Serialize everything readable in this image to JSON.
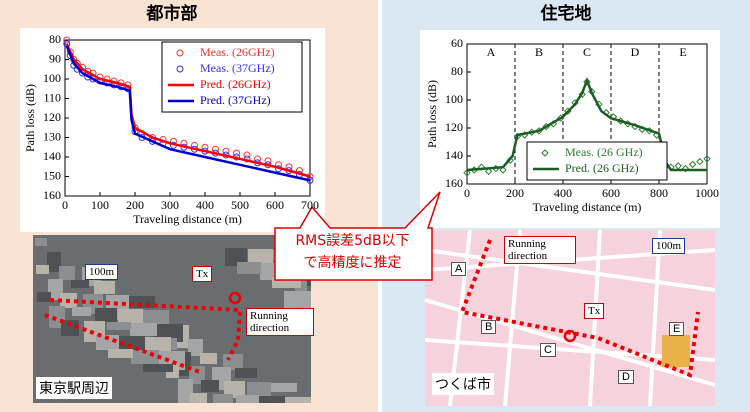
{
  "chart_data": [
    {
      "type": "line",
      "title": "都市部",
      "xlabel": "Traveling distance (m)",
      "ylabel": "Path loss (dB)",
      "xlim": [
        0,
        700
      ],
      "xticks": [
        0,
        100,
        200,
        300,
        400,
        500,
        600,
        700
      ],
      "ylim": [
        80,
        160
      ],
      "yticks": [
        80,
        90,
        100,
        110,
        120,
        130,
        140,
        150,
        160
      ],
      "y_inverted": true,
      "legend": "upper right",
      "series": [
        {
          "name": "Meas. (26GHz)",
          "color": "#ff3030",
          "mode": "markers",
          "marker": "circle",
          "x": [
            5,
            15,
            25,
            35,
            50,
            65,
            80,
            100,
            120,
            140,
            160,
            180,
            200,
            220,
            250,
            280,
            310,
            340,
            370,
            400,
            430,
            460,
            490,
            520,
            550,
            580,
            610,
            640,
            670,
            700
          ],
          "values": [
            80,
            86,
            90,
            92,
            94,
            96,
            97,
            99,
            100,
            101,
            102,
            103,
            125,
            128,
            130,
            131,
            132,
            133,
            134,
            135,
            136,
            137,
            138,
            139,
            141,
            142,
            144,
            145,
            147,
            150
          ]
        },
        {
          "name": "Meas. (37GHz)",
          "color": "#3030ff",
          "mode": "markers",
          "marker": "circle",
          "x": [
            5,
            15,
            25,
            35,
            50,
            65,
            80,
            100,
            120,
            140,
            160,
            180,
            200,
            220,
            250,
            280,
            310,
            340,
            370,
            400,
            430,
            460,
            490,
            520,
            550,
            580,
            610,
            640,
            670,
            700
          ],
          "values": [
            82,
            88,
            93,
            95,
            97,
            99,
            100,
            101,
            102,
            103,
            104,
            105,
            127,
            130,
            132,
            133,
            134,
            135,
            136,
            137,
            138,
            139,
            140,
            141,
            143,
            144,
            146,
            147,
            149,
            152
          ]
        },
        {
          "name": "Pred. (26GHz)",
          "color": "#ff0000",
          "mode": "line",
          "x": [
            5,
            25,
            50,
            100,
            150,
            185,
            190,
            200,
            250,
            300,
            400,
            500,
            600,
            700
          ],
          "values": [
            82,
            90,
            95,
            100,
            102,
            104,
            118,
            125,
            130,
            133,
            137,
            141,
            145,
            150
          ]
        },
        {
          "name": "Pred. (37GHz)",
          "color": "#0000cc",
          "mode": "line",
          "x": [
            5,
            25,
            50,
            100,
            150,
            185,
            190,
            200,
            250,
            300,
            400,
            500,
            600,
            700
          ],
          "values": [
            83,
            92,
            97,
            102,
            104,
            106,
            121,
            128,
            132,
            136,
            140,
            144,
            148,
            152
          ]
        }
      ]
    },
    {
      "type": "line",
      "title": "住宅地",
      "xlabel": "Traveling distance (m)",
      "ylabel": "Path loss (dB)",
      "xlim": [
        0,
        1000
      ],
      "xticks": [
        0,
        200,
        400,
        600,
        800,
        1000
      ],
      "ylim": [
        60,
        160
      ],
      "yticks": [
        60,
        80,
        100,
        120,
        140,
        160
      ],
      "y_inverted": true,
      "legend": "lower center",
      "section_boundaries": [
        200,
        400,
        600,
        800
      ],
      "section_labels": [
        "A",
        "B",
        "C",
        "D",
        "E"
      ],
      "series": [
        {
          "name": "Meas. (26 GHz)",
          "color": "#2e7d32",
          "mode": "markers",
          "marker": "diamond",
          "x": [
            0,
            30,
            60,
            90,
            120,
            150,
            180,
            210,
            240,
            270,
            300,
            330,
            360,
            390,
            420,
            450,
            480,
            500,
            520,
            550,
            580,
            610,
            640,
            670,
            700,
            730,
            760,
            790,
            820,
            850,
            880,
            910,
            940,
            970,
            1000
          ],
          "values": [
            152,
            150,
            148,
            151,
            149,
            150,
            143,
            126,
            125,
            123,
            122,
            119,
            117,
            113,
            108,
            102,
            96,
            87,
            94,
            103,
            109,
            112,
            115,
            117,
            119,
            121,
            122,
            125,
            148,
            148,
            147,
            149,
            146,
            144,
            142
          ]
        },
        {
          "name": "Pred. (26 GHz)",
          "color": "#1b5e20",
          "mode": "line",
          "x": [
            0,
            150,
            190,
            210,
            300,
            400,
            450,
            480,
            500,
            520,
            560,
            600,
            700,
            800,
            830,
            850,
            1000
          ],
          "values": [
            150,
            148,
            140,
            125,
            122,
            112,
            103,
            95,
            86,
            95,
            108,
            113,
            118,
            124,
            145,
            150,
            150
          ]
        }
      ]
    }
  ],
  "callout": {
    "lines": [
      "RMS誤差5dB以下",
      "で高精度に推定"
    ]
  },
  "maps": [
    {
      "place": "東京駅周辺",
      "scale": "100m",
      "tx": "Tx",
      "direction": "Running direction"
    },
    {
      "place": "つくば市",
      "scale": "100m",
      "tx": "Tx",
      "direction": "Running direction",
      "points": [
        "A",
        "B",
        "C",
        "D",
        "E"
      ]
    }
  ]
}
